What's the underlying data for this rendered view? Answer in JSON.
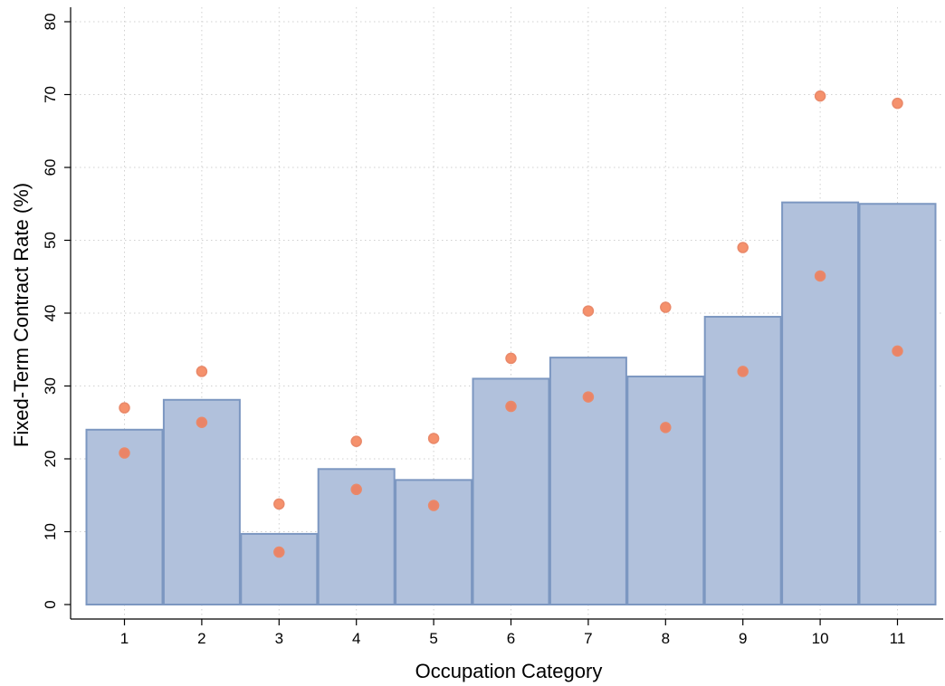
{
  "chart_data": {
    "type": "bar",
    "title": "",
    "xlabel": "Occupation Category",
    "ylabel": "Fixed-Term Contract Rate (%)",
    "categories": [
      "1",
      "2",
      "3",
      "4",
      "5",
      "6",
      "7",
      "8",
      "9",
      "10",
      "11"
    ],
    "ylim": [
      0,
      80
    ],
    "yticks": [
      0,
      10,
      20,
      30,
      40,
      50,
      60,
      70,
      80
    ],
    "grid": true,
    "legend": "none",
    "series": [
      {
        "type": "bar",
        "values": [
          24.0,
          28.1,
          9.7,
          18.6,
          17.1,
          31.0,
          33.9,
          31.3,
          39.5,
          55.2,
          55.0
        ]
      },
      {
        "type": "scatter",
        "role": "upper",
        "values": [
          27.0,
          32.0,
          13.8,
          22.4,
          22.8,
          33.8,
          40.3,
          40.8,
          49.0,
          69.8,
          68.8
        ]
      },
      {
        "type": "scatter",
        "role": "lower",
        "values": [
          20.8,
          25.0,
          7.2,
          15.8,
          13.6,
          27.2,
          28.5,
          24.3,
          32.0,
          45.1,
          34.8
        ]
      }
    ],
    "colors": {
      "bar_fill": "#b1c1dc",
      "bar_edge": "#7c97c1",
      "point_upper": "#f5916c",
      "point_lower": "#ea8467"
    }
  }
}
